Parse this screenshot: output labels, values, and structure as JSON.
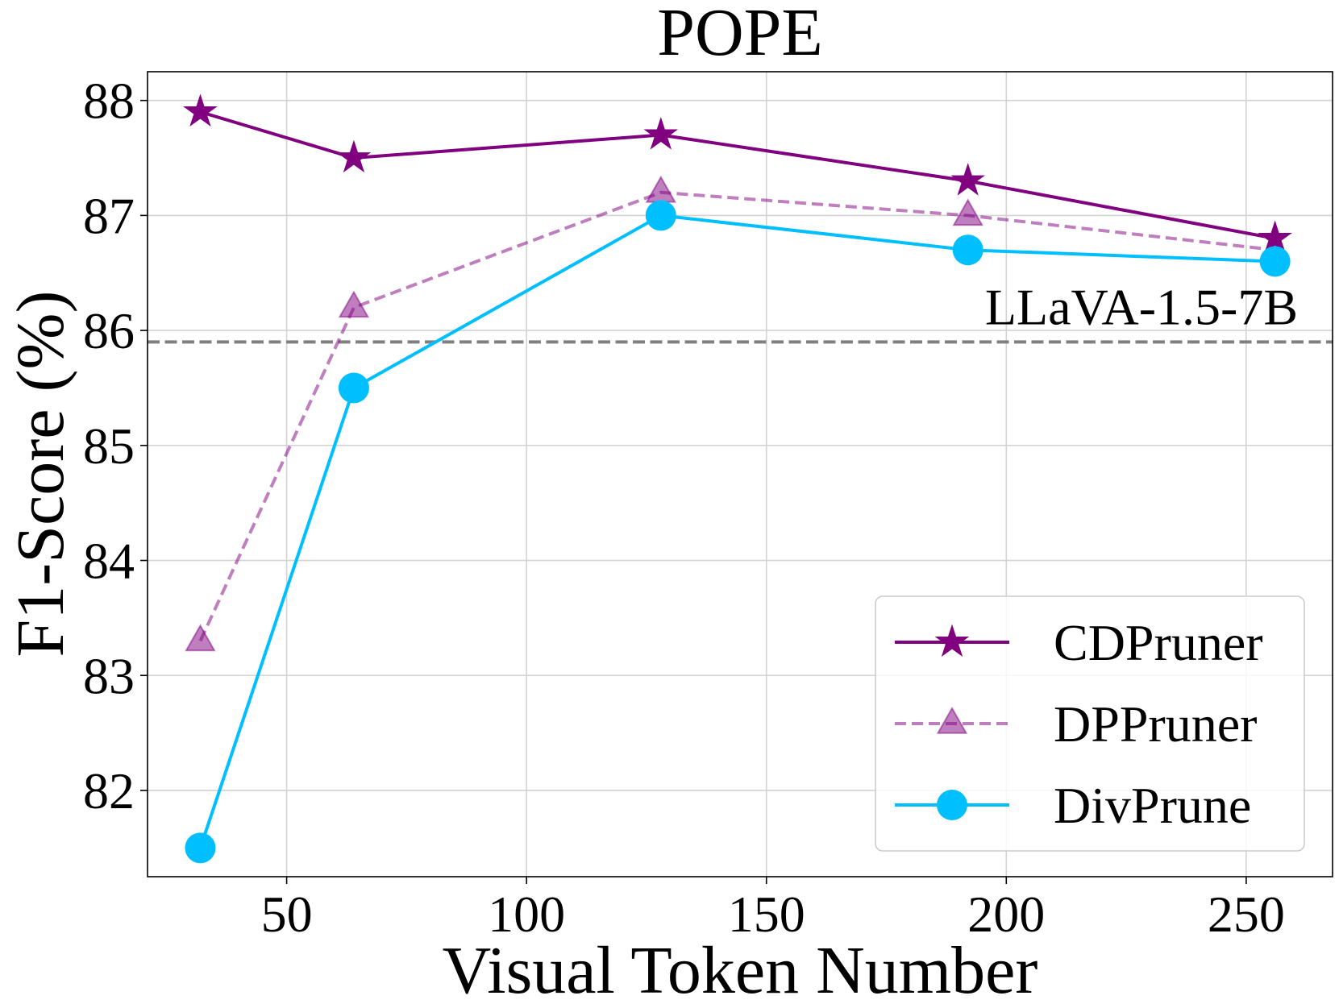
{
  "chart_data": {
    "type": "line",
    "title": "POPE",
    "xlabel": "Visual Token Number",
    "ylabel": "F1-Score (%)",
    "xlim": [
      21,
      268
    ],
    "ylim": [
      81.25,
      88.25
    ],
    "xticks": [
      50,
      100,
      150,
      200,
      250
    ],
    "yticks": [
      82,
      83,
      84,
      85,
      86,
      87,
      88
    ],
    "grid": true,
    "legend_position": "lower-right",
    "reference_line": {
      "label": "LLaVA-1.5-7B",
      "value": 85.9,
      "color": "#808080",
      "style": "dashed"
    },
    "x": [
      32,
      64,
      128,
      192,
      256
    ],
    "series": [
      {
        "name": "CDPruner",
        "values": [
          87.9,
          87.5,
          87.7,
          87.3,
          86.8
        ],
        "color": "#800080",
        "marker": "star",
        "line_style": "solid",
        "opacity": 1.0
      },
      {
        "name": "DPPruner",
        "values": [
          83.3,
          86.2,
          87.2,
          87.0,
          86.7
        ],
        "color": "#800080",
        "marker": "triangle",
        "line_style": "dashed",
        "opacity": 0.5
      },
      {
        "name": "DivPrune",
        "values": [
          81.5,
          85.5,
          87.0,
          86.7,
          86.6
        ],
        "color": "#00BFFF",
        "marker": "circle",
        "line_style": "solid",
        "opacity": 1.0
      }
    ]
  }
}
